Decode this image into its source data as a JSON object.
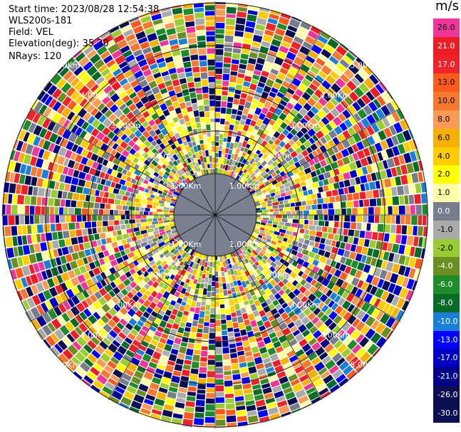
{
  "info": {
    "start_time": "Start time: 2023/08/28 12:54:38",
    "instrument": "WLS200s-181",
    "field": "Field: VEL",
    "elevation": "Elevation(deg): 35.30",
    "nrays": "NRays: 120"
  },
  "range_rings": [
    {
      "label": "1.00Km",
      "km": 1
    },
    {
      "label": "2.00Km",
      "km": 2
    },
    {
      "label": "3.00Km",
      "km": 3
    },
    {
      "label": "4.00Km",
      "km": 4
    },
    {
      "label": "5.00Km",
      "km": 5
    }
  ],
  "colorbar": {
    "unit": "m/s",
    "levels": [
      {
        "label": "26.0",
        "value": 26,
        "color": "#f0349a"
      },
      {
        "label": "21.0",
        "value": 21,
        "color": "#ee1c24"
      },
      {
        "label": "17.0",
        "value": 17,
        "color": "#f0232b"
      },
      {
        "label": "13.0",
        "value": 13,
        "color": "#ff5a1e"
      },
      {
        "label": "10.0",
        "value": 10,
        "color": "#f7792f"
      },
      {
        "label": "8.0",
        "value": 8,
        "color": "#f99a55"
      },
      {
        "label": "6.0",
        "value": 6,
        "color": "#f7b000"
      },
      {
        "label": "4.0",
        "value": 4,
        "color": "#ffcc00"
      },
      {
        "label": "2.0",
        "value": 2,
        "color": "#ffff00"
      },
      {
        "label": "1.0",
        "value": 1,
        "color": "#ffffaa"
      },
      {
        "label": "0.0",
        "value": 0,
        "color": "#777d8c"
      },
      {
        "label": "-1.0",
        "value": -1,
        "color": "#aaaaaa"
      },
      {
        "label": "-2.0",
        "value": -2,
        "color": "#9acd32"
      },
      {
        "label": "-4.0",
        "value": -4,
        "color": "#6b8e23"
      },
      {
        "label": "-6.0",
        "value": -6,
        "color": "#1e8c28"
      },
      {
        "label": "-8.0",
        "value": -8,
        "color": "#0a6a28"
      },
      {
        "label": "-10.0",
        "value": -10,
        "color": "#1a7fd6"
      },
      {
        "label": "-13.0",
        "value": -13,
        "color": "#0000ff"
      },
      {
        "label": "-17.0",
        "value": -17,
        "color": "#0000c0"
      },
      {
        "label": "-21.0",
        "value": -21,
        "color": "#00008b"
      },
      {
        "label": "-26.0",
        "value": -26,
        "color": "#0b0f52"
      },
      {
        "label": "-30.0",
        "value": -30,
        "color": "#0b0f52"
      }
    ]
  }
}
